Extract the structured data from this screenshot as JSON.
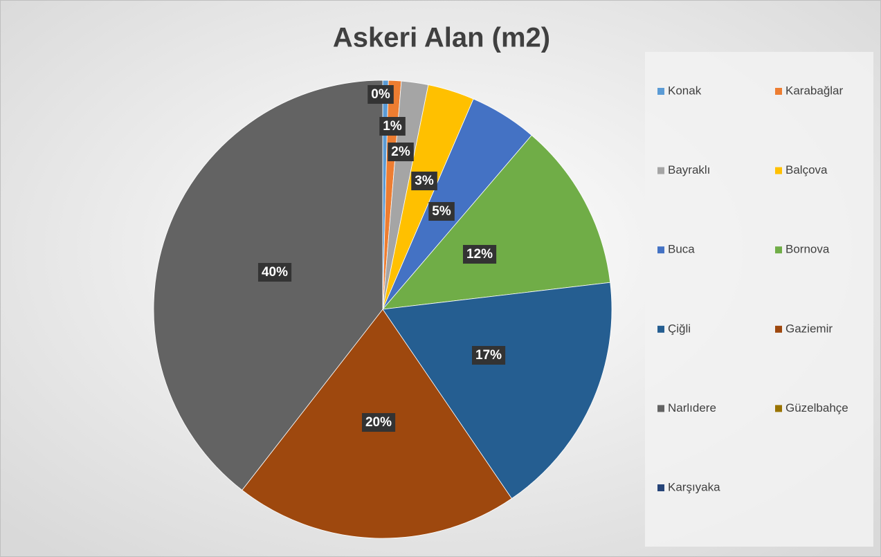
{
  "chart_data": {
    "type": "pie",
    "title": "Askeri Alan (m2)",
    "categories": [
      "Konak",
      "Karabağlar",
      "Bayraklı",
      "Balçova",
      "Buca",
      "Bornova",
      "Çiğli",
      "Gaziemir",
      "Narlıdere",
      "Güzelbahçe",
      "Karşıyaka"
    ],
    "values": [
      0.4,
      0.9,
      1.9,
      3.3,
      4.8,
      11.9,
      17.4,
      20.1,
      39.6,
      0,
      0
    ],
    "value_labels": [
      "0%",
      "1%",
      "2%",
      "3%",
      "5%",
      "12%",
      "17%",
      "20%",
      "40%",
      null,
      null
    ],
    "colors": [
      "#5b9bd5",
      "#ed7d31",
      "#a5a5a5",
      "#ffc000",
      "#4472c4",
      "#70ad47",
      "#255e91",
      "#9e480e",
      "#636363",
      "#997300",
      "#264478"
    ],
    "legend": "right"
  }
}
